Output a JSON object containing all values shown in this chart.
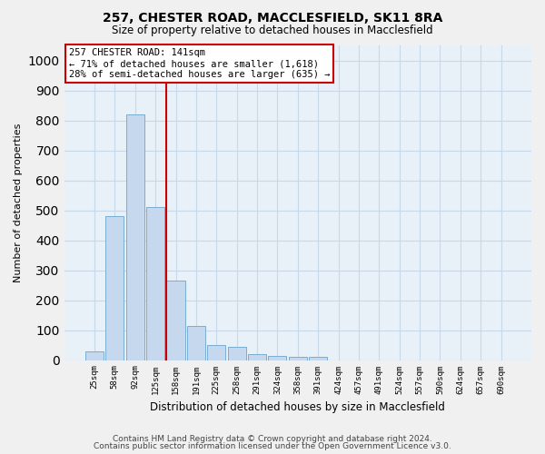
{
  "title1": "257, CHESTER ROAD, MACCLESFIELD, SK11 8RA",
  "title2": "Size of property relative to detached houses in Macclesfield",
  "xlabel": "Distribution of detached houses by size in Macclesfield",
  "ylabel": "Number of detached properties",
  "footnote1": "Contains HM Land Registry data © Crown copyright and database right 2024.",
  "footnote2": "Contains public sector information licensed under the Open Government Licence v3.0.",
  "bar_color": "#c5d8ee",
  "bar_edge_color": "#7aadd4",
  "grid_color": "#c8d8e8",
  "background_color": "#e8f0f8",
  "fig_background": "#f0f0f0",
  "annotation_box_color": "#cc0000",
  "vline_color": "#cc0000",
  "categories": [
    "25sqm",
    "58sqm",
    "92sqm",
    "125sqm",
    "158sqm",
    "191sqm",
    "225sqm",
    "258sqm",
    "291sqm",
    "324sqm",
    "358sqm",
    "391sqm",
    "424sqm",
    "457sqm",
    "491sqm",
    "524sqm",
    "557sqm",
    "590sqm",
    "624sqm",
    "657sqm",
    "690sqm"
  ],
  "values": [
    30,
    480,
    820,
    510,
    265,
    115,
    50,
    45,
    20,
    15,
    10,
    12,
    0,
    0,
    0,
    0,
    0,
    0,
    0,
    0,
    0
  ],
  "ylim": [
    0,
    1050
  ],
  "yticks": [
    0,
    100,
    200,
    300,
    400,
    500,
    600,
    700,
    800,
    900,
    1000
  ],
  "property_label": "257 CHESTER ROAD: 141sqm",
  "annotation_line1": "← 71% of detached houses are smaller (1,618)",
  "annotation_line2": "28% of semi-detached houses are larger (635) →",
  "vline_position": 3.55
}
